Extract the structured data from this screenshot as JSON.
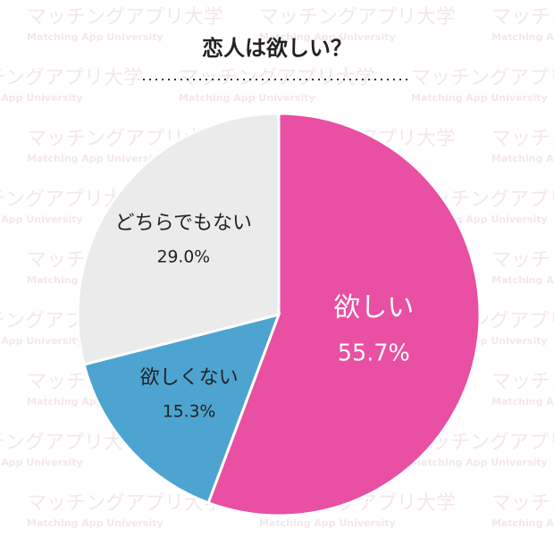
{
  "chart_data": {
    "type": "pie",
    "title": "恋人は欲しい？",
    "categories": [
      "欲しい",
      "欲しくない",
      "どちらでもない"
    ],
    "values": [
      55.7,
      15.3,
      29.0
    ],
    "value_labels": [
      "55.7%",
      "15.3%",
      "29.0%"
    ],
    "colors": [
      "#e94fa3",
      "#4ea4d0",
      "#ebebeb"
    ],
    "label_colors": [
      "#ffffff",
      "#222222",
      "#222222"
    ],
    "watermark": {
      "text": "マッチングアプリ大学",
      "subtext": "Matching App University"
    }
  }
}
